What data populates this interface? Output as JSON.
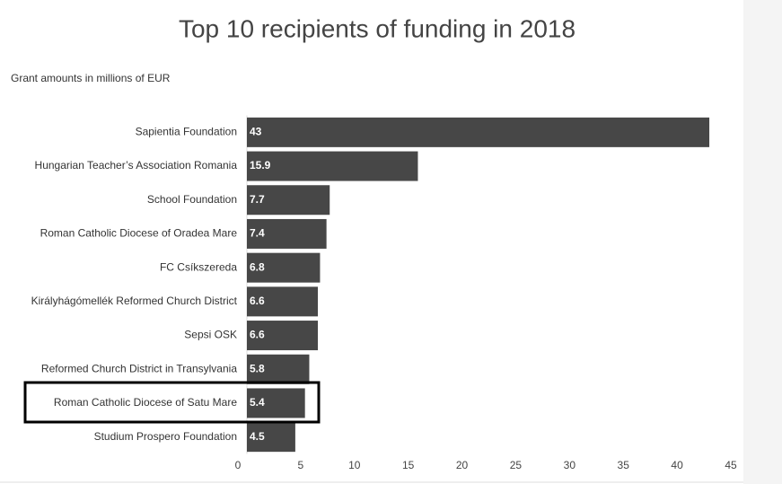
{
  "chart_data": {
    "type": "hbar",
    "title": "Top 10 recipients of funding in 2018",
    "subtitle": "Grant amounts in millions of EUR",
    "categories": [
      "Sapientia Foundation",
      "Hungarian Teacher’s Association Romania",
      "School Foundation",
      "Roman Catholic Diocese of Oradea Mare",
      "FC Csíkszereda",
      "Királyhágómellék Reformed Church District",
      "Sepsi OSK",
      "Reformed Church District in Transylvania",
      "Roman Catholic Diocese of Satu Mare",
      "Studium Prospero Foundation"
    ],
    "values": [
      43,
      15.9,
      7.7,
      7.4,
      6.8,
      6.6,
      6.6,
      5.8,
      5.4,
      4.5
    ],
    "color": "#474747",
    "xlim": [
      0,
      45
    ],
    "xticks": [
      0,
      5,
      10,
      15,
      20,
      25,
      30,
      35,
      40,
      45
    ],
    "grid": false
  }
}
